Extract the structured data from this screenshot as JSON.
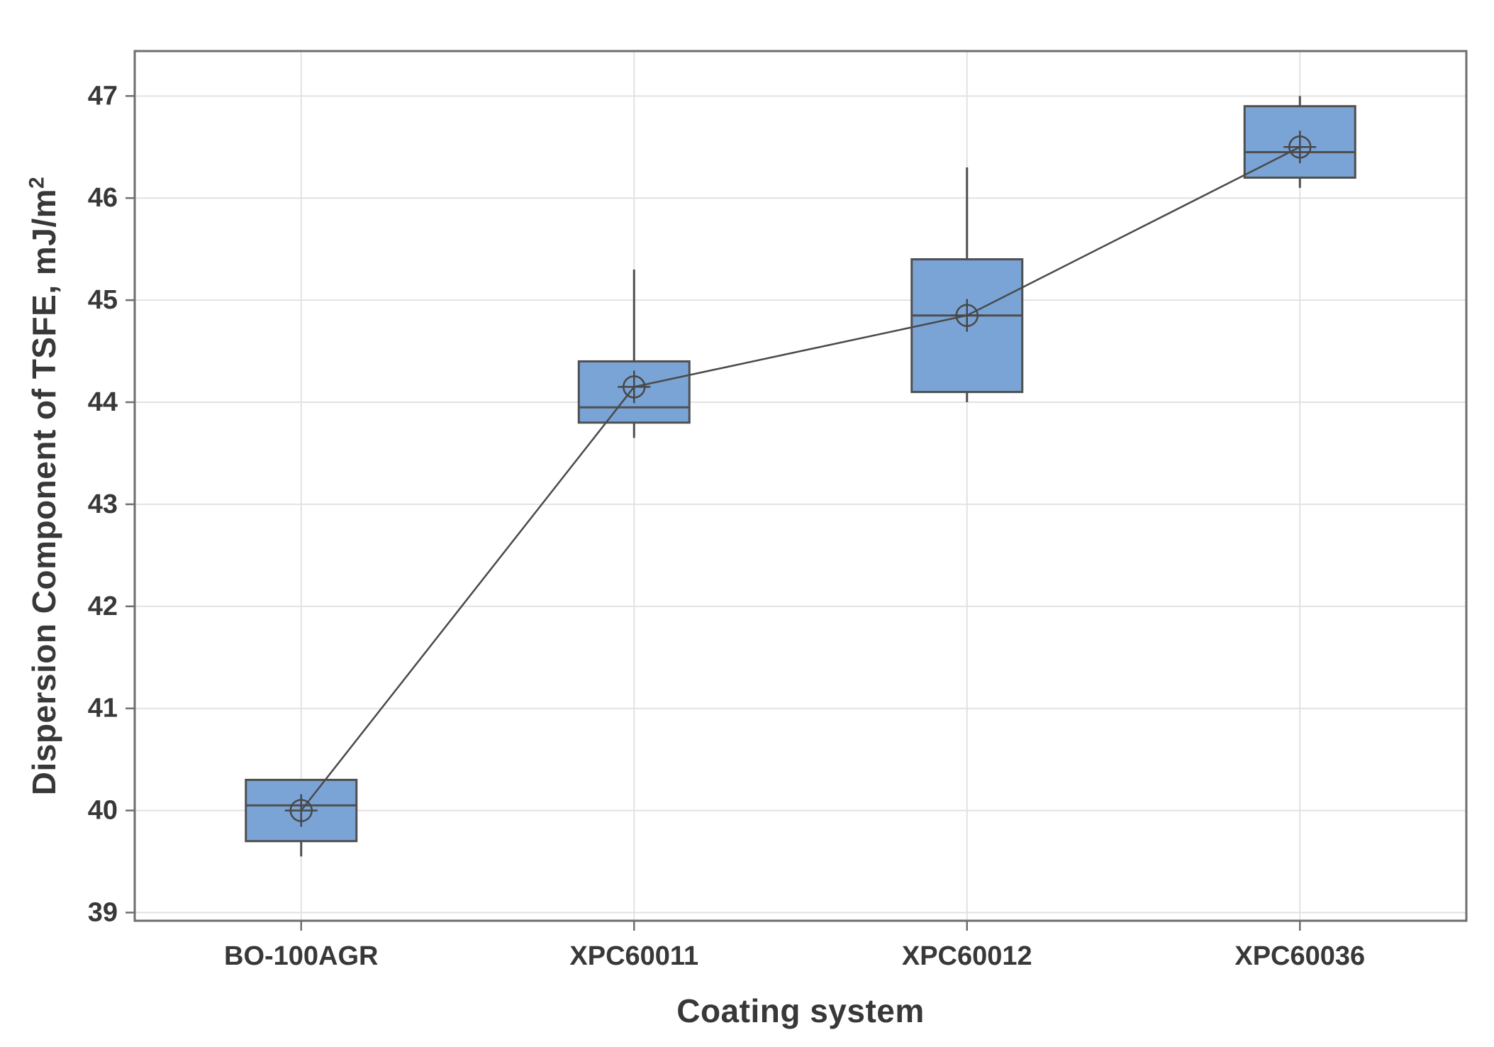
{
  "chart_data": {
    "type": "boxplot",
    "title": "",
    "xlabel": "Coating system",
    "ylabel": "Dispersion Component of TSFE, mJ/m",
    "ylabel_superscript": "2",
    "categories": [
      "BO-100AGR",
      "XPC60011",
      "XPC60012",
      "XPC60036"
    ],
    "y_ticks": [
      39,
      40,
      41,
      42,
      43,
      44,
      45,
      46,
      47
    ],
    "ylim": [
      38.92,
      47.44
    ],
    "grid": "horizontal-and-vertical",
    "legend": "none",
    "mean_marker": "circled-crosshair",
    "mean_connect_line": true,
    "series": [
      {
        "category": "BO-100AGR",
        "whisker_low": 39.55,
        "q1": 39.7,
        "median": 40.05,
        "q3": 40.3,
        "whisker_high": 40.3,
        "mean": 40.0
      },
      {
        "category": "XPC60011",
        "whisker_low": 43.65,
        "q1": 43.8,
        "median": 43.95,
        "q3": 44.4,
        "whisker_high": 45.3,
        "mean": 44.15
      },
      {
        "category": "XPC60012",
        "whisker_low": 44.0,
        "q1": 44.1,
        "median": 44.85,
        "q3": 45.4,
        "whisker_high": 46.3,
        "mean": 44.85
      },
      {
        "category": "XPC60036",
        "whisker_low": 46.1,
        "q1": 46.2,
        "median": 46.45,
        "q3": 46.9,
        "whisker_high": 47.0,
        "mean": 46.5
      }
    ],
    "colors": {
      "box_fill": "#7aa4d6",
      "box_stroke": "#4f4f4f",
      "median_stroke": "#4f4f4f",
      "whisker_stroke": "#4f4f4f",
      "mean_marker_stroke": "#474747",
      "mean_line": "#4a4a4a",
      "grid": "#e2e2e2",
      "axis": "#6e6e6e",
      "text": "#383838"
    }
  }
}
